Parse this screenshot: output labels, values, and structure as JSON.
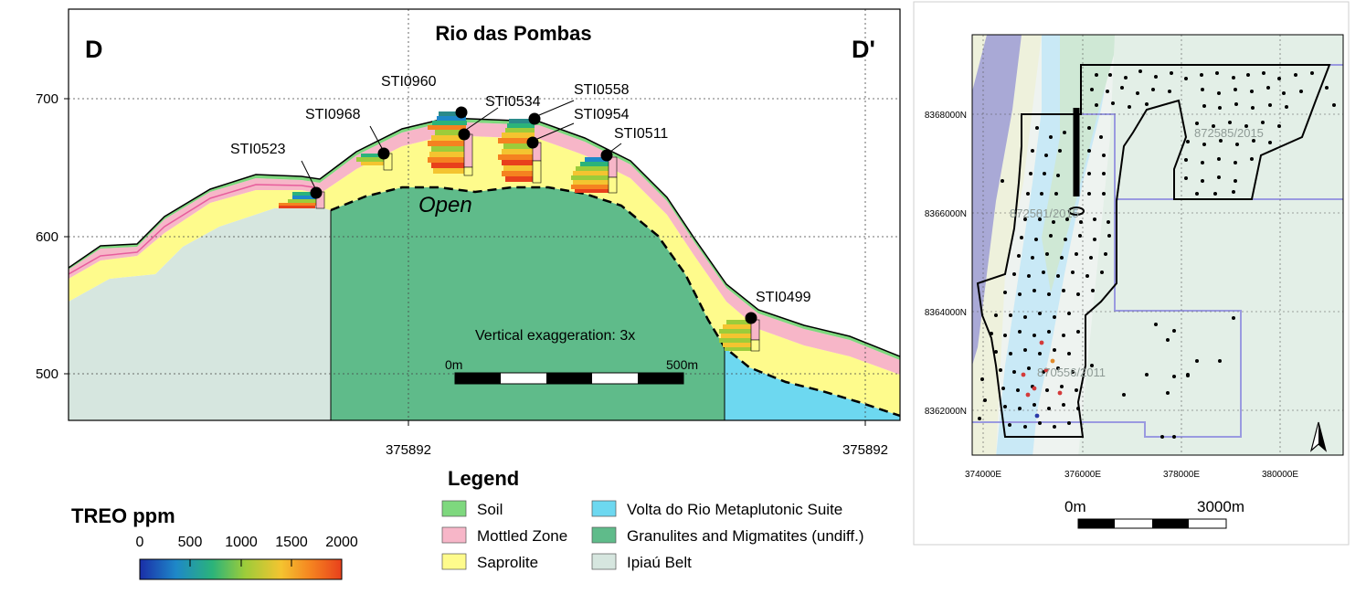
{
  "section": {
    "title": "Rio das Pombas",
    "left_label": "D",
    "right_label": "D'",
    "annotation": "Open",
    "y_ticks": [
      "700",
      "600",
      "500"
    ],
    "x_ticks": [
      "375892",
      "375892"
    ],
    "vertical_exaggeration": "Vertical exaggeration: 3x",
    "scale_start": "0m",
    "scale_end": "500m",
    "wells": [
      {
        "id": "STI0523"
      },
      {
        "id": "STI0968"
      },
      {
        "id": "STI0960"
      },
      {
        "id": "STI0534"
      },
      {
        "id": "STI0558"
      },
      {
        "id": "STI0954"
      },
      {
        "id": "STI0511"
      },
      {
        "id": "STI0499"
      }
    ]
  },
  "colorbar": {
    "title": "TREO ppm",
    "ticks": [
      "0",
      "500",
      "1000",
      "1500",
      "2000"
    ],
    "colors": [
      "#1a2ea8",
      "#1e88c8",
      "#2bb37a",
      "#9ccc3a",
      "#f4c430",
      "#f58220",
      "#e8401c"
    ]
  },
  "legend": {
    "title": "Legend",
    "items": [
      {
        "label": "Soil",
        "color": "#7ed87e"
      },
      {
        "label": "Mottled Zone",
        "color": "#f7b6c8"
      },
      {
        "label": "Saprolite",
        "color": "#fefb8c"
      },
      {
        "label": "Volta do Rio Metaplutonic Suite",
        "color": "#6dd8f0"
      },
      {
        "label": "Granulites and Migmatites (undiff.)",
        "color": "#5fbb8a"
      },
      {
        "label": "Ipiaú Belt",
        "color": "#d6e6df"
      }
    ]
  },
  "map": {
    "y_ticks": [
      "8368000N",
      "8366000N",
      "8364000N",
      "8362000N"
    ],
    "x_ticks": [
      "374000E",
      "376000E",
      "378000E",
      "380000E"
    ],
    "tenement_labels": [
      "872585/2015",
      "872581/2015",
      "870556/2011"
    ],
    "scale_start": "0m",
    "scale_end": "3000m"
  }
}
